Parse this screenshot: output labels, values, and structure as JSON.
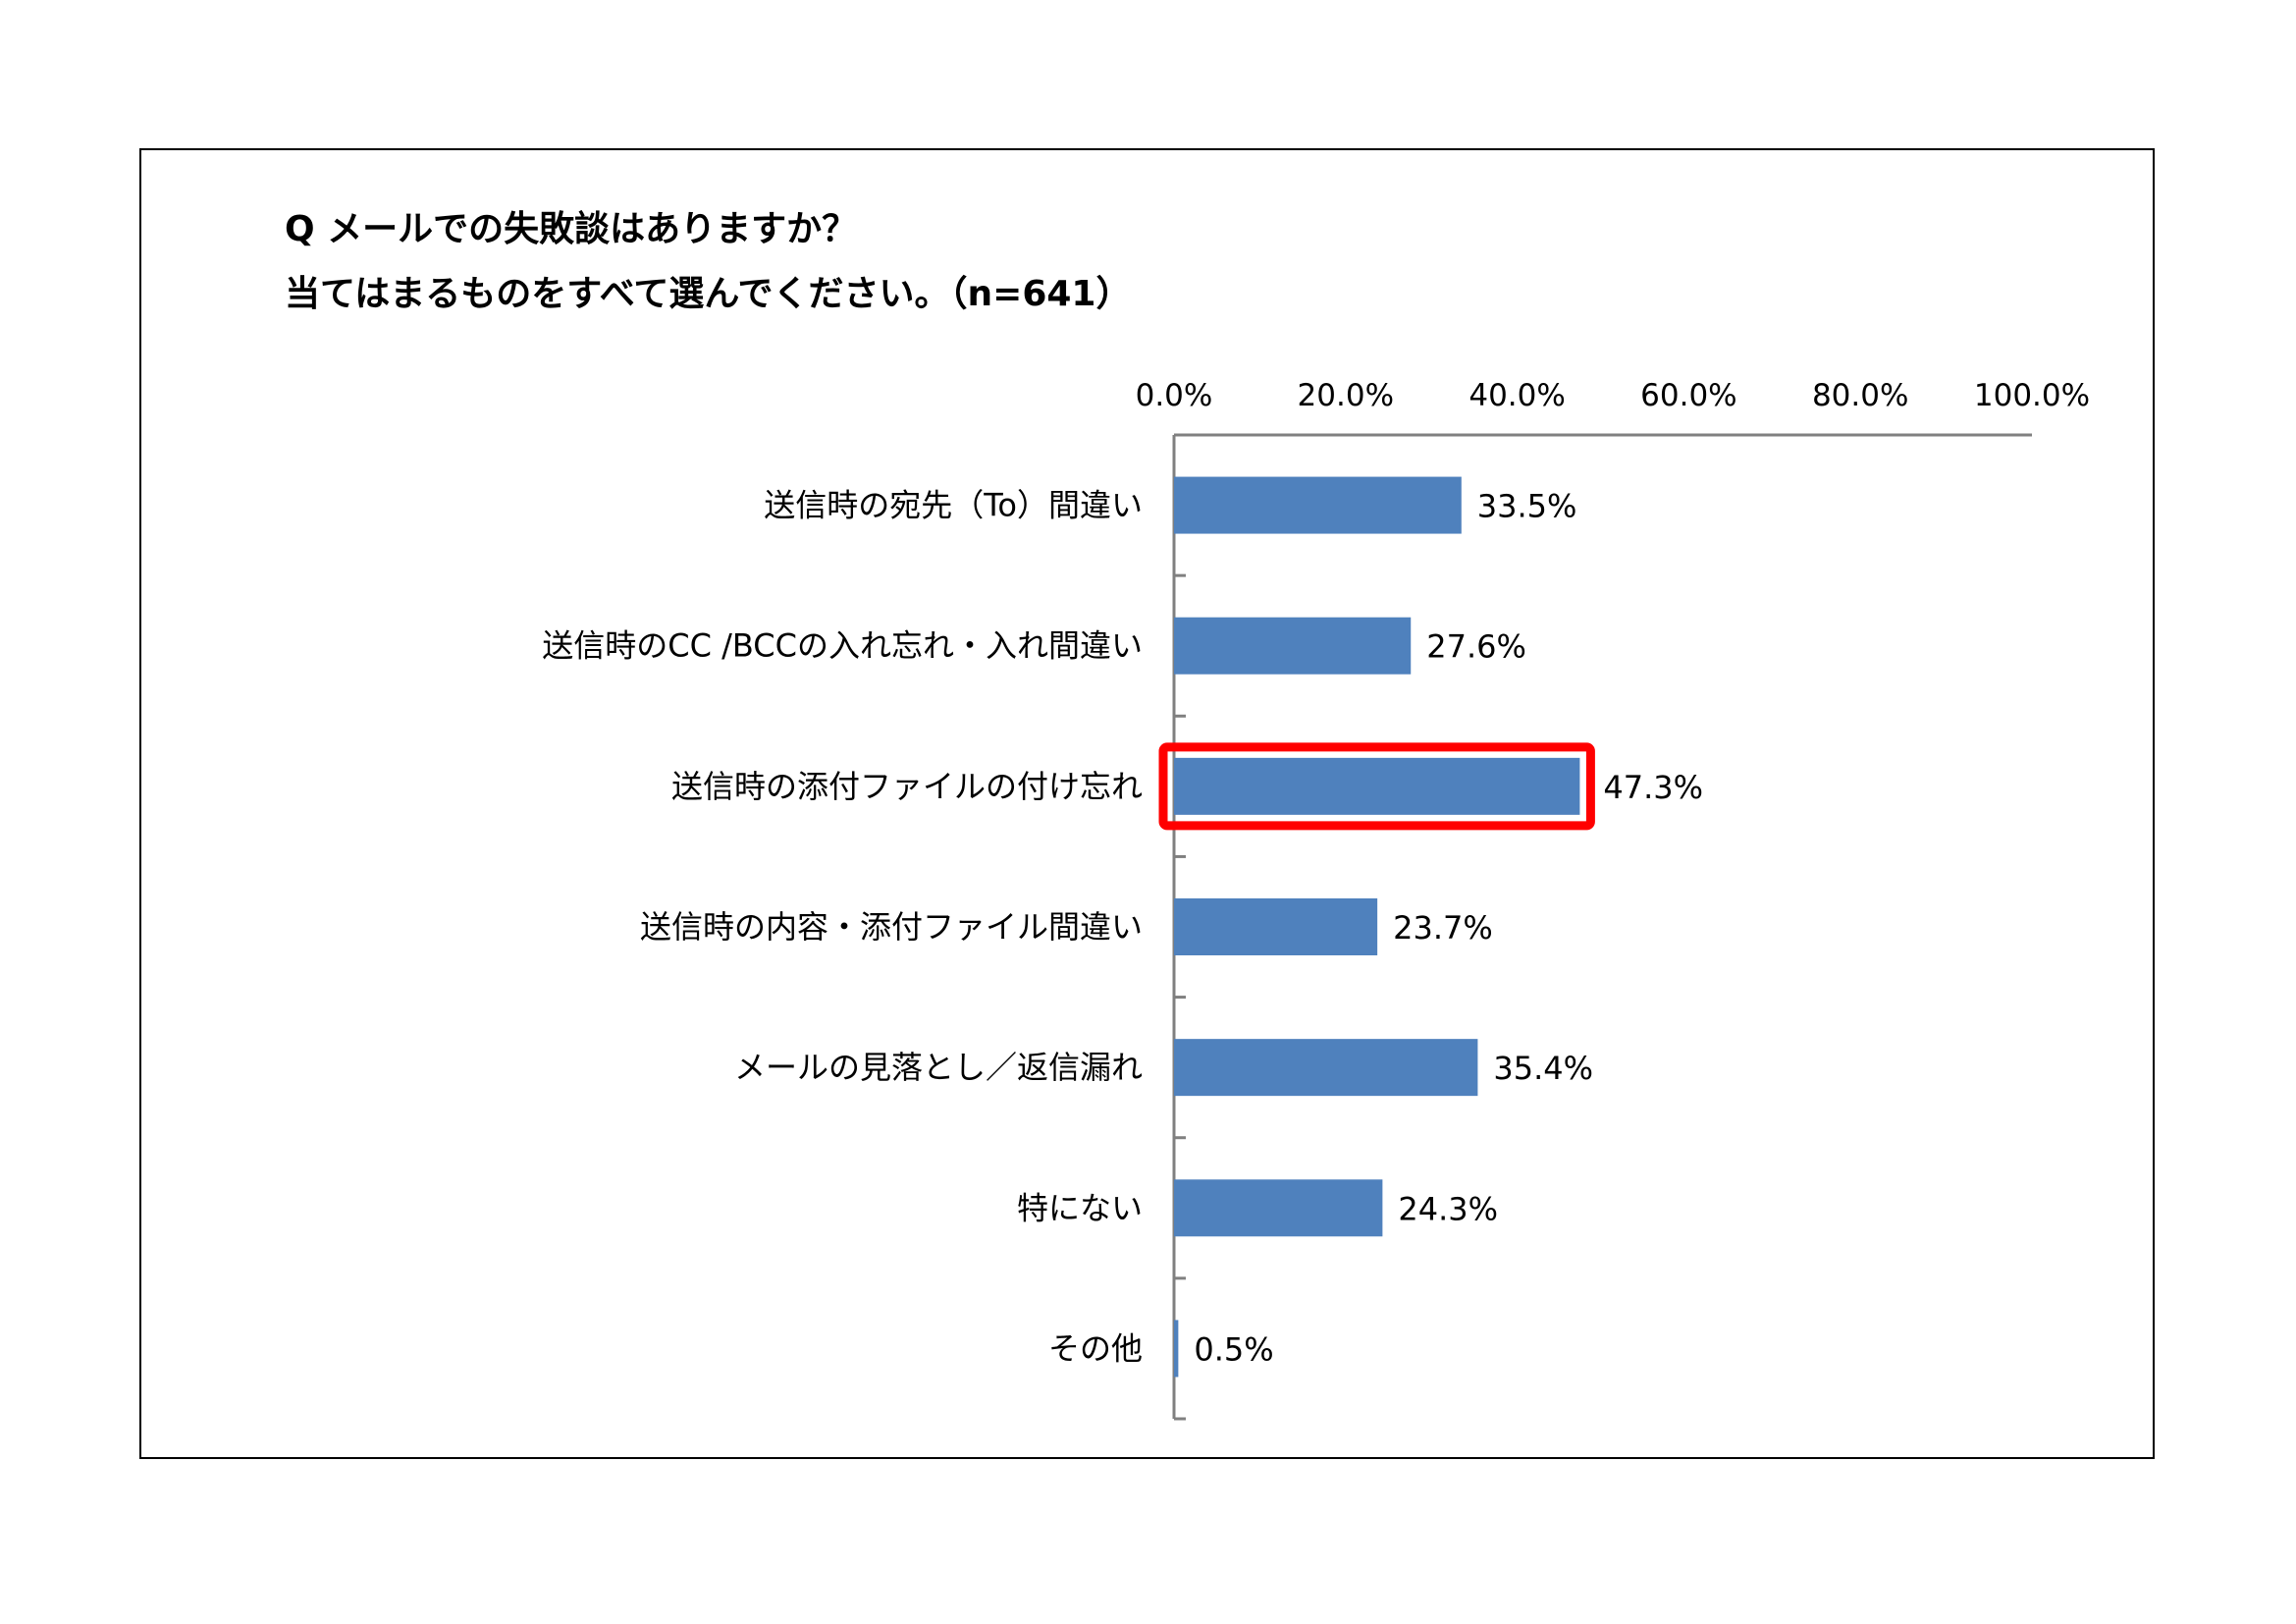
{
  "header": {
    "title_line_1": "Q メールでの失敗談はありますか？",
    "title_line_2": "当てはまるものをすべて選んでください。（n=641）"
  },
  "colors": {
    "bar": "#4f81bd",
    "highlight": "#ff0000",
    "axis": "#808080"
  },
  "chart_data": {
    "type": "bar",
    "orientation": "horizontal",
    "title": "Q メールでの失敗談はありますか？ 当てはまるものをすべて選んでください。（n=641）",
    "categories": [
      "送信時の宛先（To）間違い",
      "送信時のCC /BCCの入れ忘れ・入れ間違い",
      "送信時の添付ファイルの付け忘れ",
      "送信時の内容・添付ファイル間違い",
      "メールの見落とし／返信漏れ",
      "特にない",
      "その他"
    ],
    "values": [
      33.5,
      27.6,
      47.3,
      23.7,
      35.4,
      24.3,
      0.5
    ],
    "value_labels": [
      "33.5%",
      "27.6%",
      "47.3%",
      "23.7%",
      "35.4%",
      "24.3%",
      "0.5%"
    ],
    "highlighted_category": "送信時の添付ファイルの付け忘れ",
    "xlim": [
      0,
      100
    ],
    "x_ticks": [
      0,
      20,
      40,
      60,
      80,
      100
    ],
    "x_tick_labels": [
      "0.0%",
      "20.0%",
      "40.0%",
      "60.0%",
      "80.0%",
      "100.0%"
    ],
    "x_axis_position": "top",
    "grid": false,
    "legend": "none"
  }
}
